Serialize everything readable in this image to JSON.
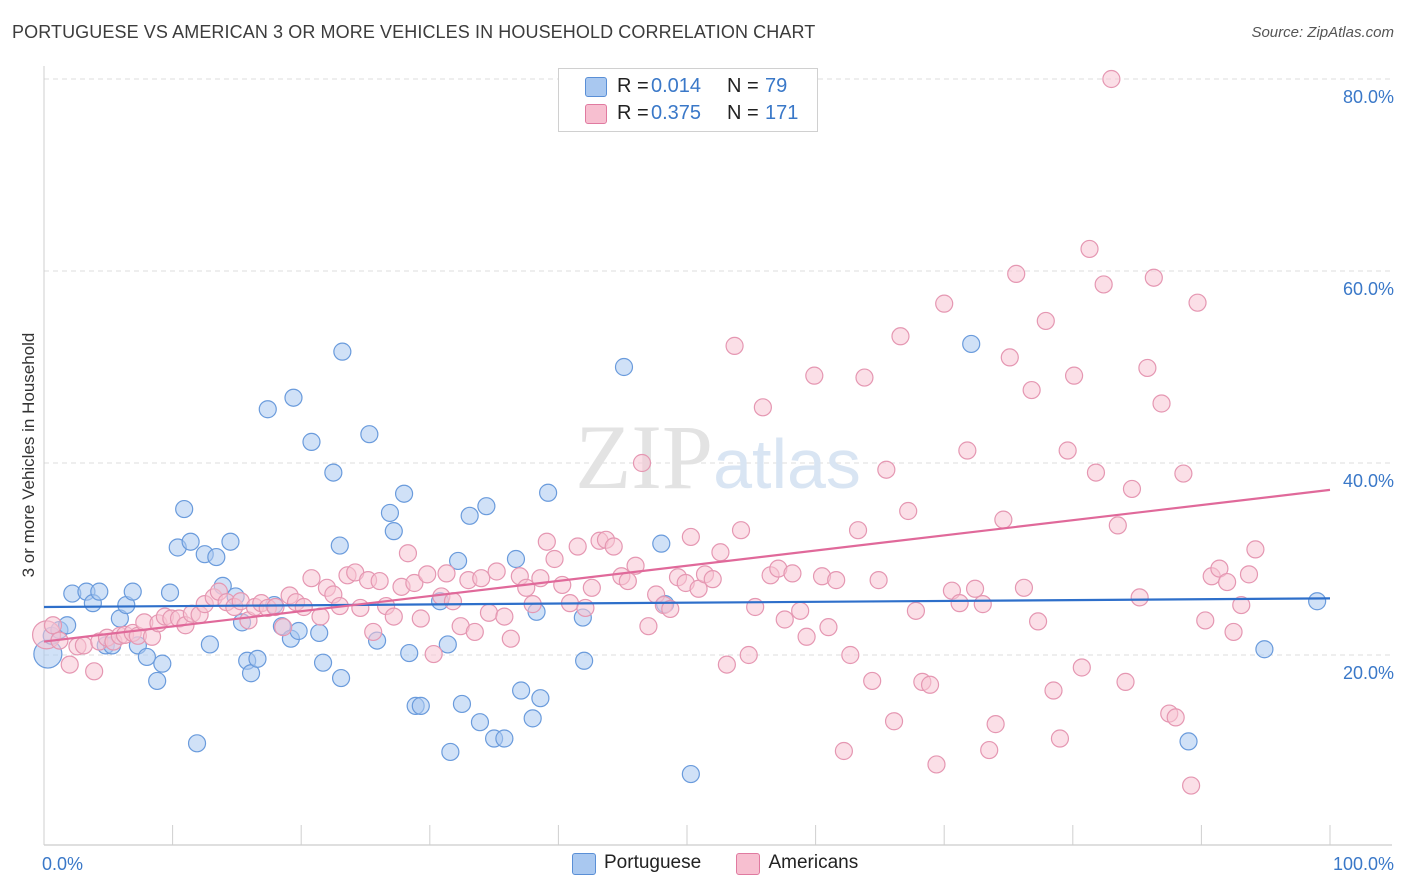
{
  "header": {
    "title": "PORTUGUESE VS AMERICAN 3 OR MORE VEHICLES IN HOUSEHOLD CORRELATION CHART",
    "source": "Source: ZipAtlas.com"
  },
  "legend_stats": [
    {
      "r_label": "R =",
      "r_value": "0.014",
      "n_label": "N =",
      "n_value": "79",
      "color": "#a9c8f0",
      "border": "#5a8fd6"
    },
    {
      "r_label": "R =",
      "r_value": "0.375",
      "n_label": "N =",
      "n_value": "171",
      "color": "#f7bfd0",
      "border": "#e07aa0"
    }
  ],
  "colors": {
    "portuguese_fill": "#a9c8f0",
    "portuguese_stroke": "#6a9bdc",
    "portuguese_line": "#2e6fca",
    "americans_fill": "#f7c5d4",
    "americans_stroke": "#e597b2",
    "americans_line": "#e0699a",
    "grid": "#dddddd",
    "tick_text": "#3a78c8"
  },
  "chart_data": {
    "type": "scatter",
    "title": "PORTUGUESE VS AMERICAN 3 OR MORE VEHICLES IN HOUSEHOLD CORRELATION CHART",
    "xlabel": "",
    "ylabel": "3 or more Vehicles in Household",
    "xlim": [
      0,
      100
    ],
    "ylim": [
      0,
      82
    ],
    "x_tick_labels": [
      "0.0%",
      "100.0%"
    ],
    "y_ticks": [
      20,
      40,
      60,
      80
    ],
    "y_tick_labels": [
      "20.0%",
      "40.0%",
      "60.0%",
      "80.0%"
    ],
    "grid": "horizontal dashed",
    "legend_position": "top-center and bottom-center",
    "watermark": "ZIPatlas",
    "series": [
      {
        "name": "Portuguese",
        "trend": [
          [
            0,
            25.0
          ],
          [
            100,
            25.9
          ]
        ],
        "points": [
          [
            0.3,
            20.1
          ],
          [
            0.6,
            22.0
          ],
          [
            1.2,
            22.6
          ],
          [
            1.8,
            23.1
          ],
          [
            2.2,
            26.4
          ],
          [
            3.3,
            26.6
          ],
          [
            3.8,
            25.4
          ],
          [
            4.3,
            26.6
          ],
          [
            4.8,
            21.0
          ],
          [
            5.3,
            21.0
          ],
          [
            5.9,
            23.8
          ],
          [
            6.4,
            25.2
          ],
          [
            6.9,
            26.6
          ],
          [
            7.3,
            21.0
          ],
          [
            8.0,
            19.8
          ],
          [
            8.8,
            17.3
          ],
          [
            9.2,
            19.1
          ],
          [
            9.8,
            26.5
          ],
          [
            10.4,
            31.2
          ],
          [
            10.9,
            35.2
          ],
          [
            11.4,
            31.8
          ],
          [
            11.9,
            10.8
          ],
          [
            12.5,
            30.5
          ],
          [
            12.9,
            21.1
          ],
          [
            13.4,
            30.2
          ],
          [
            13.9,
            27.2
          ],
          [
            14.5,
            31.8
          ],
          [
            14.9,
            26.1
          ],
          [
            15.4,
            23.4
          ],
          [
            15.8,
            19.4
          ],
          [
            16.1,
            18.1
          ],
          [
            16.6,
            19.6
          ],
          [
            17.4,
            45.6
          ],
          [
            17.9,
            25.2
          ],
          [
            18.5,
            23.0
          ],
          [
            19.2,
            21.7
          ],
          [
            19.4,
            46.8
          ],
          [
            19.8,
            22.5
          ],
          [
            20.8,
            42.2
          ],
          [
            21.4,
            22.3
          ],
          [
            22.5,
            39.0
          ],
          [
            23.1,
            17.6
          ],
          [
            23.2,
            51.6
          ],
          [
            23.0,
            31.4
          ],
          [
            25.3,
            43.0
          ],
          [
            25.9,
            21.5
          ],
          [
            26.9,
            34.8
          ],
          [
            27.2,
            32.9
          ],
          [
            28.0,
            36.8
          ],
          [
            28.4,
            20.2
          ],
          [
            28.9,
            14.7
          ],
          [
            29.3,
            14.7
          ],
          [
            30.8,
            25.6
          ],
          [
            31.4,
            21.1
          ],
          [
            31.6,
            9.9
          ],
          [
            32.2,
            29.8
          ],
          [
            32.5,
            14.9
          ],
          [
            33.1,
            34.5
          ],
          [
            33.9,
            13.0
          ],
          [
            34.4,
            35.5
          ],
          [
            35.0,
            11.3
          ],
          [
            35.8,
            11.3
          ],
          [
            36.7,
            30.0
          ],
          [
            37.1,
            16.3
          ],
          [
            38.0,
            13.4
          ],
          [
            38.3,
            24.5
          ],
          [
            38.6,
            15.5
          ],
          [
            39.2,
            36.9
          ],
          [
            41.9,
            23.9
          ],
          [
            42.0,
            19.4
          ],
          [
            45.1,
            50.0
          ],
          [
            48.0,
            31.6
          ],
          [
            48.3,
            25.3
          ],
          [
            50.3,
            7.6
          ],
          [
            72.1,
            52.4
          ],
          [
            89.0,
            11.0
          ],
          [
            94.9,
            20.6
          ],
          [
            99.0,
            25.6
          ],
          [
            21.7,
            19.2
          ]
        ]
      },
      {
        "name": "Americans",
        "trend": [
          [
            0,
            21.4
          ],
          [
            100,
            37.2
          ]
        ],
        "points": [
          [
            0.2,
            22.1
          ],
          [
            0.7,
            23.1
          ],
          [
            1.2,
            21.5
          ],
          [
            2.0,
            19.0
          ],
          [
            2.6,
            20.9
          ],
          [
            3.1,
            21.0
          ],
          [
            3.9,
            18.3
          ],
          [
            4.3,
            21.4
          ],
          [
            4.9,
            21.8
          ],
          [
            5.4,
            21.4
          ],
          [
            5.9,
            22.0
          ],
          [
            6.3,
            22.1
          ],
          [
            6.9,
            22.3
          ],
          [
            7.3,
            22.0
          ],
          [
            7.8,
            23.4
          ],
          [
            8.4,
            21.9
          ],
          [
            8.9,
            23.3
          ],
          [
            9.4,
            24.0
          ],
          [
            9.9,
            23.8
          ],
          [
            10.5,
            23.8
          ],
          [
            11.0,
            23.1
          ],
          [
            11.5,
            24.3
          ],
          [
            12.1,
            24.2
          ],
          [
            12.5,
            25.3
          ],
          [
            13.2,
            26.0
          ],
          [
            13.6,
            26.6
          ],
          [
            14.2,
            25.5
          ],
          [
            14.8,
            25.0
          ],
          [
            15.3,
            25.6
          ],
          [
            15.9,
            23.6
          ],
          [
            16.4,
            25.0
          ],
          [
            16.9,
            25.4
          ],
          [
            17.4,
            24.9
          ],
          [
            18.0,
            25.0
          ],
          [
            18.6,
            22.9
          ],
          [
            19.1,
            26.2
          ],
          [
            19.6,
            25.5
          ],
          [
            20.2,
            25.0
          ],
          [
            20.8,
            28.0
          ],
          [
            21.5,
            24.0
          ],
          [
            22.0,
            27.0
          ],
          [
            22.5,
            26.3
          ],
          [
            23.0,
            25.1
          ],
          [
            23.6,
            28.3
          ],
          [
            24.2,
            28.6
          ],
          [
            24.6,
            24.9
          ],
          [
            25.2,
            27.8
          ],
          [
            25.6,
            22.4
          ],
          [
            26.1,
            27.7
          ],
          [
            26.6,
            25.1
          ],
          [
            27.2,
            24.0
          ],
          [
            27.8,
            27.1
          ],
          [
            28.3,
            30.6
          ],
          [
            28.8,
            27.5
          ],
          [
            29.3,
            23.8
          ],
          [
            29.8,
            28.4
          ],
          [
            30.3,
            20.1
          ],
          [
            30.9,
            26.1
          ],
          [
            31.3,
            28.5
          ],
          [
            31.8,
            25.6
          ],
          [
            32.4,
            23.0
          ],
          [
            33.0,
            27.8
          ],
          [
            33.5,
            22.4
          ],
          [
            34.0,
            28.0
          ],
          [
            34.6,
            24.4
          ],
          [
            35.2,
            28.7
          ],
          [
            35.8,
            24.0
          ],
          [
            36.3,
            21.7
          ],
          [
            37.0,
            28.2
          ],
          [
            37.5,
            27.0
          ],
          [
            38.0,
            25.3
          ],
          [
            38.6,
            28.0
          ],
          [
            39.1,
            31.8
          ],
          [
            39.7,
            30.0
          ],
          [
            40.3,
            27.3
          ],
          [
            40.9,
            25.4
          ],
          [
            41.5,
            31.3
          ],
          [
            42.1,
            24.9
          ],
          [
            42.6,
            27.0
          ],
          [
            43.2,
            31.9
          ],
          [
            43.7,
            32.0
          ],
          [
            44.3,
            31.3
          ],
          [
            44.9,
            28.2
          ],
          [
            45.4,
            27.7
          ],
          [
            46.0,
            29.3
          ],
          [
            46.5,
            40.0
          ],
          [
            47.0,
            23.0
          ],
          [
            47.6,
            26.3
          ],
          [
            48.2,
            25.2
          ],
          [
            48.7,
            24.8
          ],
          [
            49.3,
            28.1
          ],
          [
            49.9,
            27.5
          ],
          [
            50.3,
            32.3
          ],
          [
            50.9,
            26.9
          ],
          [
            51.4,
            28.4
          ],
          [
            52.0,
            27.9
          ],
          [
            52.6,
            30.7
          ],
          [
            53.1,
            19.0
          ],
          [
            53.7,
            52.2
          ],
          [
            54.2,
            33.0
          ],
          [
            54.8,
            20.0
          ],
          [
            55.3,
            25.0
          ],
          [
            55.9,
            45.8
          ],
          [
            56.5,
            28.3
          ],
          [
            57.1,
            29.0
          ],
          [
            57.6,
            23.7
          ],
          [
            58.2,
            28.5
          ],
          [
            58.8,
            24.6
          ],
          [
            59.3,
            21.9
          ],
          [
            59.9,
            49.1
          ],
          [
            60.5,
            28.2
          ],
          [
            61.0,
            22.9
          ],
          [
            61.6,
            27.8
          ],
          [
            62.2,
            10.0
          ],
          [
            62.7,
            20.0
          ],
          [
            63.3,
            33.0
          ],
          [
            63.8,
            48.9
          ],
          [
            64.4,
            17.3
          ],
          [
            64.9,
            27.8
          ],
          [
            65.5,
            39.3
          ],
          [
            66.1,
            13.1
          ],
          [
            66.6,
            53.2
          ],
          [
            67.2,
            35.0
          ],
          [
            67.8,
            24.6
          ],
          [
            68.3,
            17.2
          ],
          [
            68.9,
            16.9
          ],
          [
            69.4,
            8.6
          ],
          [
            70.0,
            56.6
          ],
          [
            70.6,
            26.7
          ],
          [
            71.2,
            25.4
          ],
          [
            71.8,
            41.3
          ],
          [
            72.4,
            26.9
          ],
          [
            73.0,
            25.3
          ],
          [
            73.5,
            10.1
          ],
          [
            74.0,
            12.8
          ],
          [
            74.6,
            34.1
          ],
          [
            75.1,
            51.0
          ],
          [
            75.6,
            59.7
          ],
          [
            76.2,
            27.0
          ],
          [
            76.8,
            47.6
          ],
          [
            77.3,
            23.5
          ],
          [
            77.9,
            54.8
          ],
          [
            78.5,
            16.3
          ],
          [
            79.0,
            11.3
          ],
          [
            79.6,
            41.3
          ],
          [
            80.1,
            49.1
          ],
          [
            80.7,
            18.7
          ],
          [
            81.3,
            62.3
          ],
          [
            81.8,
            39.0
          ],
          [
            82.4,
            58.6
          ],
          [
            83.0,
            80.0
          ],
          [
            83.5,
            33.5
          ],
          [
            84.1,
            17.2
          ],
          [
            84.6,
            37.3
          ],
          [
            85.2,
            26.0
          ],
          [
            85.8,
            49.9
          ],
          [
            86.3,
            59.3
          ],
          [
            86.9,
            46.2
          ],
          [
            87.5,
            13.9
          ],
          [
            88.0,
            13.5
          ],
          [
            88.6,
            38.9
          ],
          [
            89.2,
            6.4
          ],
          [
            89.7,
            56.7
          ],
          [
            90.3,
            23.6
          ],
          [
            90.8,
            28.2
          ],
          [
            91.4,
            29.0
          ],
          [
            92.0,
            27.6
          ],
          [
            92.5,
            22.4
          ],
          [
            93.1,
            25.2
          ],
          [
            93.7,
            28.4
          ],
          [
            94.2,
            31.0
          ]
        ]
      }
    ]
  }
}
